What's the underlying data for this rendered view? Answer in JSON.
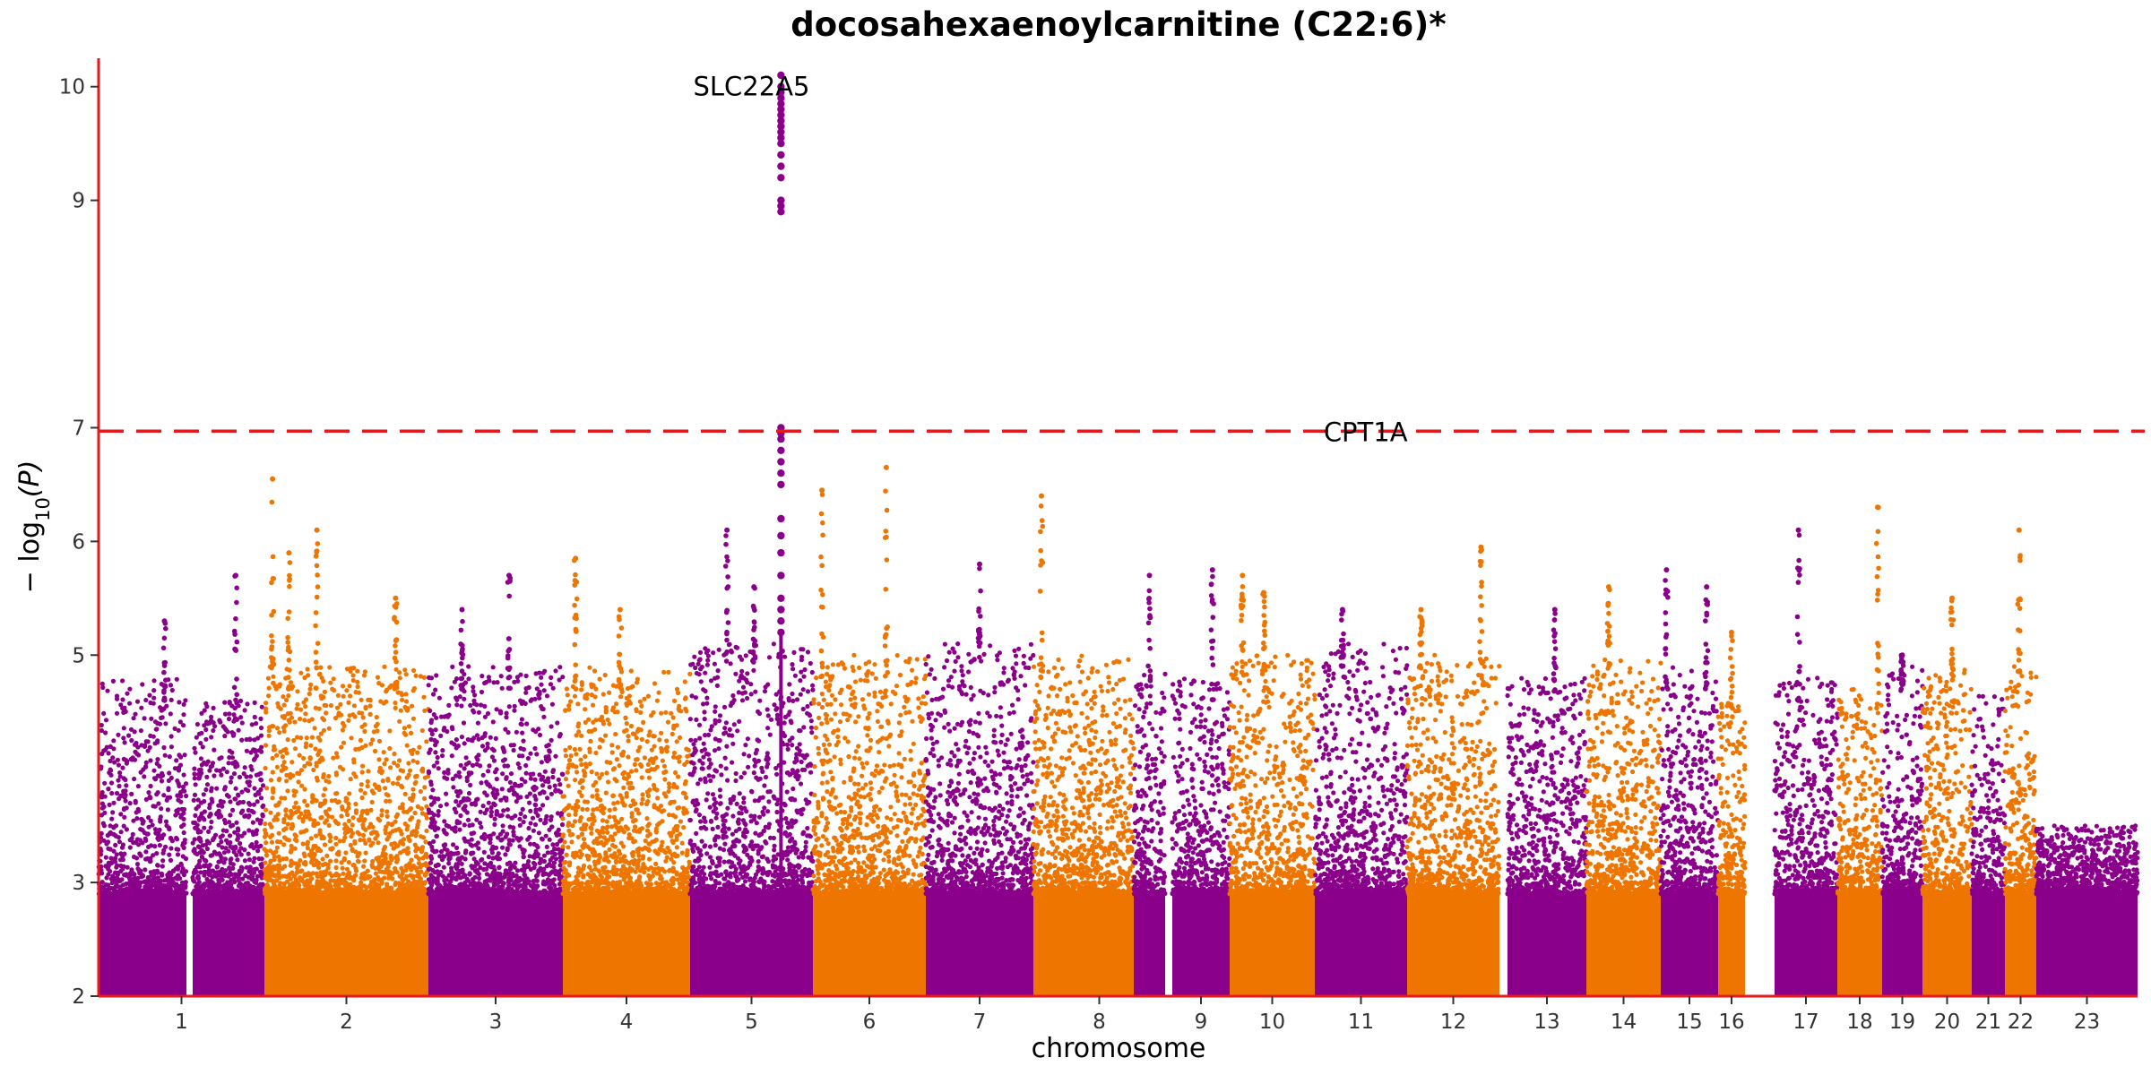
{
  "chart_data": {
    "type": "scatter",
    "subtype": "manhattan",
    "title": "docosahexaenoylcarnitine (C22:6)*",
    "xlabel": "chromosome",
    "ylabel": "−log10(P)",
    "ylabel_parts": {
      "prefix": "− log",
      "sub": "10",
      "suffix": "(P)"
    },
    "ylim": [
      2,
      10.25
    ],
    "yticks": [
      2,
      3,
      5,
      6,
      7,
      9,
      10
    ],
    "colors": {
      "odd_chromosomes": "#8B008B",
      "even_chromosomes": "#EE7600",
      "axis": "#E41A1C",
      "threshold": "#E41A1C"
    },
    "threshold": {
      "value": 6.97,
      "style": "dashed"
    },
    "chromosomes": [
      {
        "label": "1",
        "color": "#8B008B",
        "base_max": 4.8,
        "peaks": [
          {
            "at": 0.75,
            "max": 5.3
          }
        ]
      },
      {
        "label": "",
        "color": "#8B008B",
        "base_max": 4.6,
        "peaks": [
          {
            "at": 0.6,
            "max": 5.7
          }
        ]
      },
      {
        "label": "2",
        "color": "#EE7600",
        "base_max": 4.9,
        "peaks": [
          {
            "at": 0.05,
            "max": 6.55
          },
          {
            "at": 0.15,
            "max": 5.9
          },
          {
            "at": 0.32,
            "max": 6.1
          },
          {
            "at": 0.8,
            "max": 5.5
          }
        ]
      },
      {
        "label": "3",
        "color": "#8B008B",
        "base_max": 4.9,
        "peaks": [
          {
            "at": 0.25,
            "max": 5.4
          },
          {
            "at": 0.6,
            "max": 5.7
          }
        ]
      },
      {
        "label": "4",
        "color": "#EE7600",
        "base_max": 4.9,
        "peaks": [
          {
            "at": 0.1,
            "max": 5.85
          },
          {
            "at": 0.45,
            "max": 5.4
          }
        ]
      },
      {
        "label": "5",
        "color": "#8B008B",
        "base_max": 5.1,
        "peaks": [
          {
            "at": 0.3,
            "max": 6.1
          },
          {
            "at": 0.52,
            "max": 5.6
          }
        ]
      },
      {
        "label": "6",
        "color": "#EE7600",
        "base_max": 5.0,
        "peaks": [
          {
            "at": 0.08,
            "max": 6.45
          },
          {
            "at": 0.65,
            "max": 6.65
          }
        ]
      },
      {
        "label": "7",
        "color": "#8B008B",
        "base_max": 5.1,
        "peaks": [
          {
            "at": 0.5,
            "max": 5.8
          }
        ]
      },
      {
        "label": "8",
        "color": "#EE7600",
        "base_max": 5.0,
        "peaks": [
          {
            "at": 0.08,
            "max": 6.4
          }
        ]
      },
      {
        "label": "",
        "color": "#8B008B",
        "base_max": 4.9,
        "peaks": [
          {
            "at": 0.5,
            "max": 5.7
          }
        ]
      },
      {
        "label": "9",
        "color": "#8B008B",
        "base_max": 4.8,
        "peaks": [
          {
            "at": 0.7,
            "max": 5.75
          }
        ]
      },
      {
        "label": "10",
        "color": "#EE7600",
        "base_max": 5.0,
        "peaks": [
          {
            "at": 0.15,
            "max": 5.7
          },
          {
            "at": 0.4,
            "max": 5.55
          }
        ]
      },
      {
        "label": "11",
        "color": "#8B008B",
        "base_max": 5.1,
        "peaks": [
          {
            "at": 0.3,
            "max": 5.4
          }
        ]
      },
      {
        "label": "12",
        "color": "#EE7600",
        "base_max": 5.0,
        "peaks": [
          {
            "at": 0.15,
            "max": 5.4
          },
          {
            "at": 0.8,
            "max": 5.95
          }
        ]
      },
      {
        "label": "13",
        "color": "#8B008B",
        "base_max": 4.8,
        "peaks": [
          {
            "at": 0.6,
            "max": 5.4
          }
        ]
      },
      {
        "label": "14",
        "color": "#EE7600",
        "base_max": 5.0,
        "peaks": [
          {
            "at": 0.3,
            "max": 5.6
          }
        ]
      },
      {
        "label": "15",
        "color": "#8B008B",
        "base_max": 4.9,
        "peaks": [
          {
            "at": 0.1,
            "max": 5.75
          },
          {
            "at": 0.8,
            "max": 5.6
          }
        ]
      },
      {
        "label": "16",
        "color": "#EE7600",
        "base_max": 4.6,
        "peaks": [
          {
            "at": 0.5,
            "max": 5.2
          }
        ]
      },
      {
        "label": "17",
        "color": "#8B008B",
        "base_max": 4.8,
        "peaks": [
          {
            "at": 0.38,
            "max": 6.1
          }
        ]
      },
      {
        "label": "18",
        "color": "#EE7600",
        "base_max": 4.7,
        "peaks": [
          {
            "at": 0.9,
            "max": 6.3
          }
        ]
      },
      {
        "label": "19",
        "color": "#8B008B",
        "base_max": 4.9,
        "peaks": [
          {
            "at": 0.5,
            "max": 5.0
          }
        ]
      },
      {
        "label": "20",
        "color": "#EE7600",
        "base_max": 4.9,
        "peaks": [
          {
            "at": 0.6,
            "max": 5.5
          }
        ]
      },
      {
        "label": "21",
        "color": "#8B008B",
        "base_max": 4.7,
        "peaks": []
      },
      {
        "label": "22",
        "color": "#EE7600",
        "base_max": 4.9,
        "peaks": [
          {
            "at": 0.45,
            "max": 6.1
          }
        ]
      },
      {
        "label": "23",
        "color": "#8B008B",
        "base_max": 3.5,
        "peaks": []
      }
    ],
    "highlight_points": [
      {
        "chrom": "5",
        "at": 0.74,
        "ys": [
          10.1,
          10.0,
          9.95,
          9.9,
          9.85,
          9.8,
          9.75,
          9.7,
          9.65,
          9.6,
          9.55,
          9.5,
          9.4,
          9.3,
          9.2,
          9.0,
          8.95,
          8.9,
          7.0,
          6.95,
          6.9,
          6.8,
          6.7,
          6.6,
          6.5,
          6.2,
          6.05,
          5.9,
          5.7,
          5.5,
          5.4,
          5.3,
          5.2
        ]
      }
    ],
    "gene_labels": [
      {
        "text": "SLC22A5",
        "chrom": "5",
        "at": 0.5,
        "y": 10.0
      },
      {
        "text": "CPT1A",
        "chrom": "11",
        "at": 0.55,
        "y": 6.96
      }
    ]
  }
}
